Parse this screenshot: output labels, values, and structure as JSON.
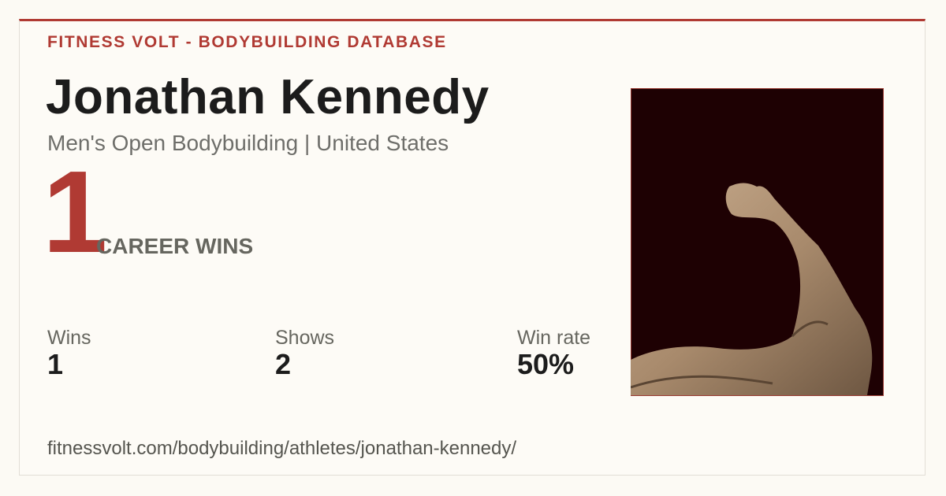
{
  "header": {
    "brand": "FITNESS VOLT - BODYBUILDING DATABASE"
  },
  "athlete": {
    "name": "Jonathan Kennedy",
    "subtitle": "Men's Open Bodybuilding | United States"
  },
  "highlight": {
    "value": "1",
    "label": "CAREER WINS"
  },
  "stats": [
    {
      "label": "Wins",
      "value": "1"
    },
    {
      "label": "Shows",
      "value": "2"
    },
    {
      "label": "Win rate",
      "value": "50%"
    }
  ],
  "footer": {
    "url": "fitnessvolt.com/bodybuilding/athletes/jonathan-kennedy/"
  }
}
